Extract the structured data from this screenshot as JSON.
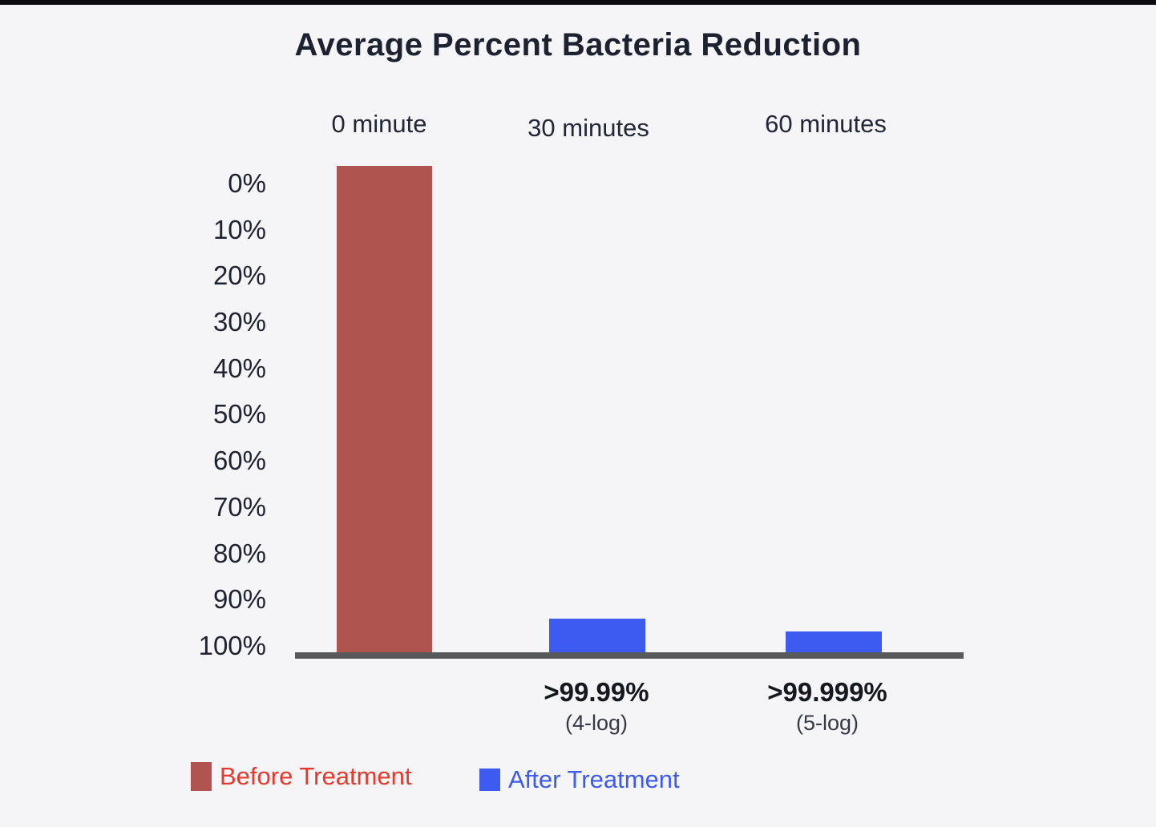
{
  "page": {
    "background": "#f5f4f6",
    "top_bar_color": "#0e0e12"
  },
  "chart_data": {
    "type": "bar",
    "title": "Average Percent Bacteria Reduction",
    "categories": [
      "0 minute",
      "30 minutes",
      "60 minutes"
    ],
    "y_axis": {
      "ticks": [
        "0%",
        "10%",
        "20%",
        "30%",
        "40%",
        "50%",
        "60%",
        "70%",
        "80%",
        "90%",
        "100%"
      ],
      "range": [
        0,
        100
      ],
      "inverted": true,
      "unit": "%"
    },
    "series": [
      {
        "name": "Before Treatment",
        "color": "#b0544f",
        "values": [
          0,
          null,
          null
        ]
      },
      {
        "name": "After Treatment",
        "color": "#3d5af1",
        "values": [
          null,
          99.99,
          99.999
        ]
      }
    ],
    "annotations": [
      {
        "category": "30 minutes",
        "value": ">99.99%",
        "detail": "(4-log)"
      },
      {
        "category": "60 minutes",
        "value": ">99.999%",
        "detail": "(5-log)"
      }
    ],
    "legend": [
      {
        "label": "Before Treatment",
        "color": "#b0544f",
        "text_color": "#e6392e"
      },
      {
        "label": "After Treatment",
        "color": "#3d5af1",
        "text_color": "#3d5af1"
      }
    ],
    "axis_line_color": "#58595b",
    "grid": false,
    "legend_position": "bottom"
  }
}
